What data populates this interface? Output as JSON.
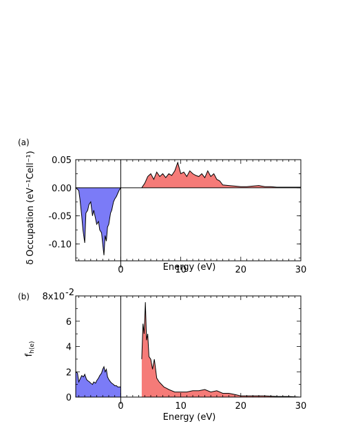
{
  "chart_data": [
    {
      "type": "area",
      "panel_label": "(a)",
      "xlabel": "Energy (eV)",
      "ylabel": "δ Occupation (eV⁻¹Cell⁻¹)",
      "xlim": [
        -7.5,
        30
      ],
      "ylim": [
        -0.13,
        0.05
      ],
      "xticks": [
        0,
        10,
        20,
        30
      ],
      "yticks": [
        0.05,
        0.0,
        -0.05,
        -0.1
      ],
      "ytick_labels": [
        "0.05",
        "0.00",
        "-0.05",
        "-0.10"
      ],
      "grid": false,
      "legend": "none",
      "fill_colors": {
        "occupied": "#7b7bf7",
        "unoccupied": "#f57b78"
      },
      "series": [
        {
          "region": "occupied",
          "x": [
            -7.5,
            -7.0,
            -6.8,
            -6.5,
            -6.3,
            -6.0,
            -5.8,
            -5.5,
            -5.3,
            -5.0,
            -4.7,
            -4.5,
            -4.2,
            -4.0,
            -3.7,
            -3.5,
            -3.2,
            -3.0,
            -2.8,
            -2.6,
            -2.4,
            -2.2,
            -2.0,
            -1.7,
            -1.5,
            -1.2,
            -1.0,
            -0.7,
            -0.5,
            -0.2,
            0.0
          ],
          "y": [
            0.0,
            -0.005,
            -0.02,
            -0.05,
            -0.075,
            -0.098,
            -0.045,
            -0.04,
            -0.03,
            -0.025,
            -0.05,
            -0.04,
            -0.055,
            -0.065,
            -0.06,
            -0.075,
            -0.08,
            -0.1,
            -0.12,
            -0.085,
            -0.095,
            -0.07,
            -0.065,
            -0.045,
            -0.04,
            -0.025,
            -0.02,
            -0.015,
            -0.01,
            -0.003,
            0.0
          ]
        },
        {
          "region": "unoccupied",
          "x": [
            3.5,
            4.0,
            4.5,
            5.0,
            5.5,
            6.0,
            6.5,
            7.0,
            7.5,
            8.0,
            8.5,
            9.0,
            9.5,
            10.0,
            10.5,
            11.0,
            11.5,
            12.0,
            12.5,
            13.0,
            13.5,
            14.0,
            14.5,
            15.0,
            15.5,
            16.0,
            16.5,
            17.0,
            18.0,
            19.0,
            20.0,
            21.0,
            22.0,
            23.0,
            24.0,
            25.0,
            26.0,
            27.0,
            28.0,
            29.0,
            30.0
          ],
          "y": [
            0.0,
            0.008,
            0.02,
            0.025,
            0.015,
            0.028,
            0.02,
            0.025,
            0.018,
            0.025,
            0.022,
            0.03,
            0.045,
            0.025,
            0.028,
            0.02,
            0.03,
            0.025,
            0.022,
            0.02,
            0.025,
            0.018,
            0.03,
            0.02,
            0.025,
            0.015,
            0.012,
            0.005,
            0.004,
            0.003,
            0.002,
            0.002,
            0.003,
            0.004,
            0.002,
            0.002,
            0.001,
            0.001,
            0.001,
            0.001,
            0.001
          ]
        }
      ]
    },
    {
      "type": "area",
      "panel_label": "(b)",
      "xlabel": "Energy (eV)",
      "ylabel": "f",
      "ylabel_sub": "h(e)",
      "xlim": [
        -7.5,
        30
      ],
      "ylim": [
        0,
        0.08
      ],
      "xticks": [
        0,
        10,
        20,
        30
      ],
      "yticks": [
        0,
        0.02,
        0.04,
        0.06,
        0.08
      ],
      "ytick_labels": [
        "0",
        "2",
        "4",
        "6",
        "8x10"
      ],
      "ytick_exponent": "-2",
      "grid": false,
      "legend": "none",
      "fill_colors": {
        "occupied": "#7b7bf7",
        "unoccupied": "#f57b78"
      },
      "series": [
        {
          "region": "occupied",
          "x": [
            -7.5,
            -7.2,
            -7.0,
            -6.7,
            -6.5,
            -6.2,
            -6.0,
            -5.7,
            -5.5,
            -5.2,
            -5.0,
            -4.7,
            -4.5,
            -4.2,
            -4.0,
            -3.7,
            -3.5,
            -3.2,
            -3.0,
            -2.8,
            -2.6,
            -2.4,
            -2.2,
            -2.0,
            -1.7,
            -1.5,
            -1.2,
            -1.0,
            -0.7,
            -0.5,
            -0.2,
            0.0
          ],
          "y": [
            0.02,
            0.019,
            0.012,
            0.015,
            0.017,
            0.016,
            0.018,
            0.014,
            0.013,
            0.012,
            0.011,
            0.01,
            0.012,
            0.011,
            0.013,
            0.015,
            0.017,
            0.019,
            0.022,
            0.024,
            0.02,
            0.022,
            0.016,
            0.014,
            0.012,
            0.011,
            0.01,
            0.009,
            0.009,
            0.008,
            0.008,
            0.008
          ]
        },
        {
          "region": "unoccupied",
          "x": [
            3.5,
            3.7,
            3.9,
            4.1,
            4.3,
            4.5,
            4.7,
            5.0,
            5.3,
            5.6,
            6.0,
            6.4,
            6.8,
            7.2,
            7.6,
            8.0,
            9.0,
            10.0,
            11.0,
            12.0,
            13.0,
            14.0,
            15.0,
            16.0,
            17.0,
            18.0,
            19.0,
            20.0,
            22.0,
            24.0,
            26.0,
            28.0,
            30.0
          ],
          "y": [
            0.03,
            0.058,
            0.05,
            0.075,
            0.045,
            0.05,
            0.032,
            0.03,
            0.022,
            0.03,
            0.015,
            0.012,
            0.01,
            0.008,
            0.007,
            0.006,
            0.004,
            0.004,
            0.004,
            0.005,
            0.005,
            0.006,
            0.004,
            0.005,
            0.003,
            0.003,
            0.002,
            0.001,
            0.001,
            0.001,
            0.0005,
            0.0005,
            0.0
          ]
        }
      ]
    }
  ]
}
